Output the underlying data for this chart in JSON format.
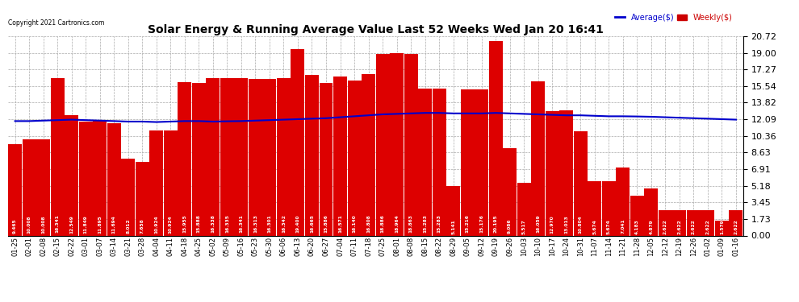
{
  "title": "Solar Energy & Running Average Value Last 52 Weeks Wed Jan 20 16:41",
  "copyright": "Copyright 2021 Cartronics.com",
  "bar_color": "#dd0000",
  "avg_color": "#0000cc",
  "weekly_color": "#cc0000",
  "ylim": [
    0,
    20.72
  ],
  "yticks": [
    0.0,
    1.73,
    3.45,
    5.18,
    6.91,
    8.63,
    10.36,
    12.09,
    13.82,
    15.54,
    17.27,
    19.0,
    20.72
  ],
  "labels": [
    "01-25",
    "02-01",
    "02-08",
    "02-15",
    "02-22",
    "03-01",
    "03-07",
    "03-14",
    "03-21",
    "03-28",
    "04-04",
    "04-11",
    "04-18",
    "04-25",
    "05-02",
    "05-09",
    "05-16",
    "05-23",
    "05-30",
    "06-06",
    "06-13",
    "06-20",
    "06-27",
    "07-04",
    "07-11",
    "07-18",
    "07-25",
    "08-01",
    "08-08",
    "08-15",
    "08-22",
    "08-29",
    "09-05",
    "09-12",
    "09-19",
    "09-26",
    "10-03",
    "10-10",
    "10-17",
    "10-24",
    "10-31",
    "11-07",
    "11-14",
    "11-21",
    "11-28",
    "12-05",
    "12-12",
    "12-19",
    "12-26",
    "01-02",
    "01-09",
    "01-16"
  ],
  "values": [
    9.465,
    10.008,
    10.008,
    16.341,
    12.549,
    11.849,
    11.895,
    11.694,
    8.012,
    7.658,
    10.924,
    10.924,
    15.955,
    15.888,
    16.338,
    16.335,
    16.341,
    16.313,
    16.301,
    16.342,
    19.4,
    16.665,
    15.886,
    16.571,
    16.14,
    16.808,
    18.886,
    18.964,
    18.863,
    15.283,
    15.283,
    5.141,
    15.216,
    15.176,
    20.195,
    9.086,
    5.517,
    16.059,
    12.97,
    13.013,
    10.804,
    5.674,
    5.674,
    7.041,
    4.183,
    4.879,
    2.622,
    2.622,
    2.622,
    2.622,
    1.579,
    2.622
  ],
  "value_labels": [
    "9.465",
    "10.008",
    "10.008",
    "16.341",
    "12.549",
    "11.849",
    "11.895",
    "11.694",
    "8.012",
    "7.658",
    "10.924",
    "10.924",
    "15.955",
    "15.888",
    "16.338",
    "16.335",
    "16.341",
    "16.313",
    "16.301",
    "16.342",
    "19.400",
    "16.665",
    "15.886",
    "16.571",
    "16.140",
    "16.808",
    "18.886",
    "18.964",
    "18.863",
    "15.283",
    "15.283",
    "5.141",
    "15.216",
    "15.176",
    "20.195",
    "9.086",
    "5.517",
    "16.059",
    "12.970",
    "13.013",
    "10.804",
    "5.674",
    "5.674",
    "7.041",
    "4.183",
    "4.879",
    "2.622",
    "2.622",
    "2.622",
    "2.622",
    "1.579",
    "2.622"
  ],
  "avg_values": [
    11.9,
    11.9,
    11.95,
    12.0,
    12.05,
    12.0,
    11.95,
    11.9,
    11.85,
    11.85,
    11.8,
    11.85,
    11.9,
    11.9,
    11.85,
    11.88,
    11.9,
    11.95,
    12.0,
    12.05,
    12.1,
    12.15,
    12.2,
    12.3,
    12.4,
    12.5,
    12.6,
    12.65,
    12.7,
    12.75,
    12.75,
    12.7,
    12.7,
    12.7,
    12.75,
    12.7,
    12.65,
    12.6,
    12.55,
    12.5,
    12.5,
    12.45,
    12.4,
    12.4,
    12.38,
    12.35,
    12.3,
    12.25,
    12.2,
    12.15,
    12.1,
    12.05
  ],
  "legend_avg_label": "Average($)",
  "legend_weekly_label": "Weekly($)"
}
